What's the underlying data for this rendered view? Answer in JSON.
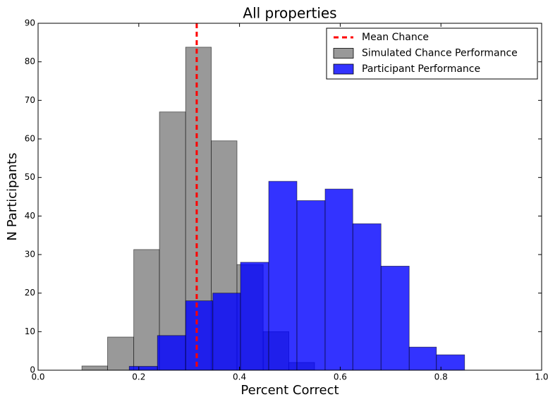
{
  "chart_data": {
    "type": "histogram",
    "title": "All properties",
    "xlabel": "Percent Correct",
    "ylabel": "N Participants",
    "xlim": [
      0,
      1
    ],
    "ylim": [
      0,
      90
    ],
    "xticks": [
      {
        "value": 0,
        "label": "0.0"
      },
      0.2,
      0.4,
      0.6,
      0.8,
      {
        "value": 1,
        "label": "1.0"
      }
    ],
    "yticks": [
      0,
      10,
      20,
      30,
      40,
      50,
      60,
      70,
      80,
      90
    ],
    "legend": "upper right",
    "series": [
      {
        "name": "Simulated Chance Performance",
        "color": "#808080",
        "bins": [
          0.087,
          0.138,
          0.19,
          0.241,
          0.293,
          0.344,
          0.395,
          0.447,
          0.498,
          0.549
        ],
        "values": [
          1.1,
          8.6,
          31.3,
          67,
          83.8,
          59.5,
          27.4,
          10,
          2
        ]
      },
      {
        "name": "Participant Performance",
        "color": "#0000ff",
        "bins": [
          0.181,
          0.237,
          0.293,
          0.347,
          0.402,
          0.458,
          0.514,
          0.57,
          0.625,
          0.681,
          0.737,
          0.791,
          0.847
        ],
        "values": [
          1,
          9,
          18,
          20,
          28,
          49,
          44,
          47,
          38,
          27,
          6,
          4
        ]
      }
    ],
    "mean_line": {
      "name": "Mean Chance",
      "x": 0.315,
      "color": "#ff0000"
    }
  }
}
